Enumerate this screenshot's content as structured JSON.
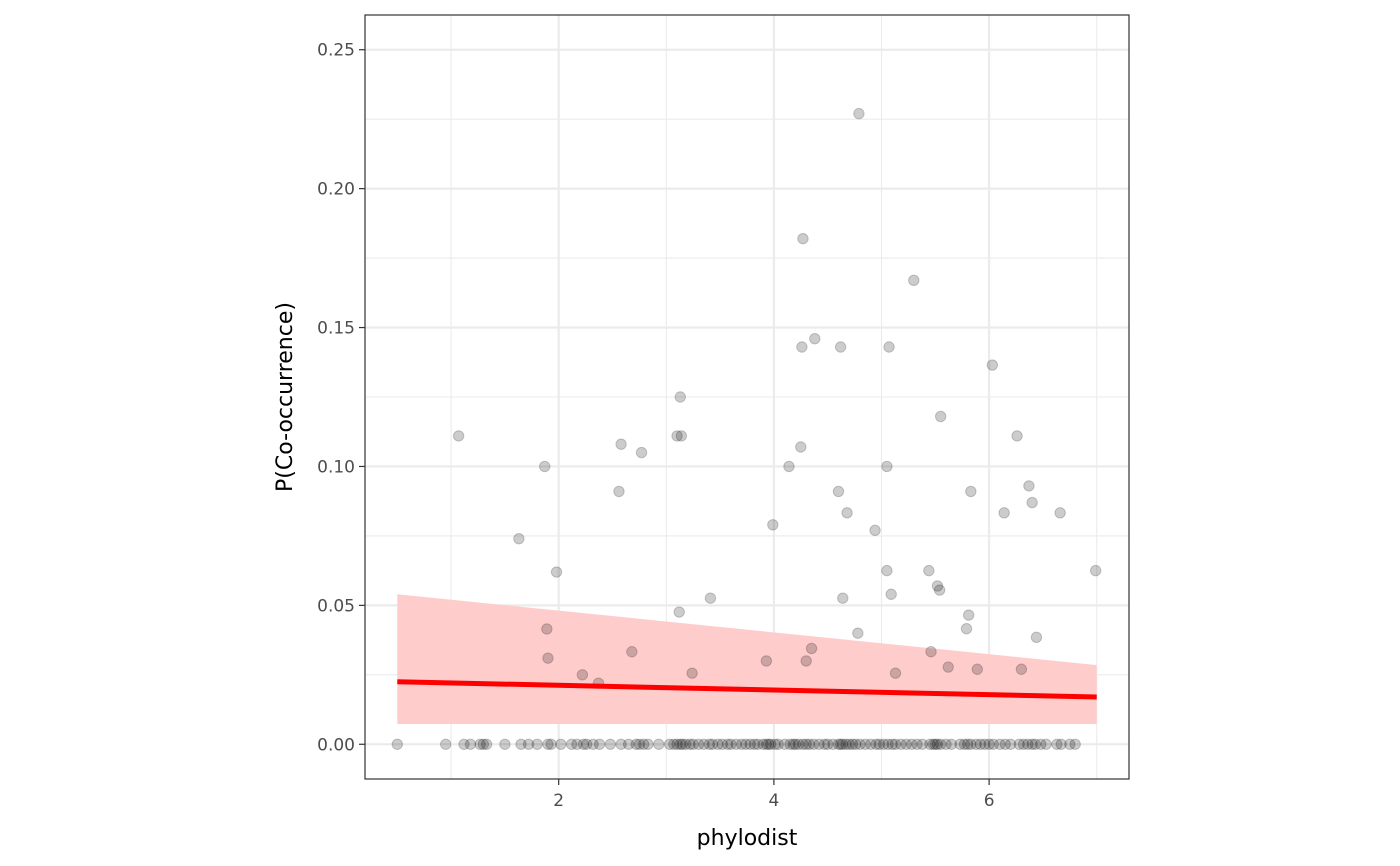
{
  "chart_data": {
    "type": "scatter",
    "xlabel": "phylodist",
    "ylabel": "P(Co-occurrence)",
    "xlim": [
      0.2,
      7.3
    ],
    "ylim": [
      -0.0125,
      0.2625
    ],
    "x_ticks": [
      2,
      4,
      6
    ],
    "x_tick_labels": [
      "2",
      "4",
      "6"
    ],
    "y_ticks": [
      0,
      0.05,
      0.1,
      0.15,
      0.2,
      0.25
    ],
    "y_tick_labels": [
      "0.00",
      "0.05",
      "0.10",
      "0.15",
      "0.20",
      "0.25"
    ],
    "grid": true,
    "legend": "none",
    "colors": {
      "points": "#000000",
      "fit_line": "#ff0000",
      "ribbon": "#ffcccc",
      "grid": "#ebebeb",
      "panel_border": "#333333"
    },
    "fit": {
      "x": [
        0.5,
        7.0
      ],
      "y": [
        0.0225,
        0.017
      ],
      "lower": [
        0.0073,
        0.0073
      ],
      "upper": [
        0.054,
        0.0285
      ]
    },
    "points": [
      [
        1.07,
        0.111
      ],
      [
        1.63,
        0.074
      ],
      [
        1.87,
        0.1
      ],
      [
        1.89,
        0.0415
      ],
      [
        1.9,
        0.031
      ],
      [
        1.98,
        0.062
      ],
      [
        2.22,
        0.025
      ],
      [
        2.37,
        0.022
      ],
      [
        2.56,
        0.091
      ],
      [
        2.58,
        0.108
      ],
      [
        2.68,
        0.0333
      ],
      [
        2.77,
        0.105
      ],
      [
        3.1,
        0.111
      ],
      [
        3.12,
        0.0476
      ],
      [
        3.13,
        0.125
      ],
      [
        3.14,
        0.111
      ],
      [
        3.24,
        0.0256
      ],
      [
        3.41,
        0.0526
      ],
      [
        3.93,
        0.03
      ],
      [
        3.99,
        0.079
      ],
      [
        4.14,
        0.1
      ],
      [
        4.25,
        0.107
      ],
      [
        4.26,
        0.143
      ],
      [
        4.27,
        0.182
      ],
      [
        4.3,
        0.03
      ],
      [
        4.35,
        0.0345
      ],
      [
        4.38,
        0.146
      ],
      [
        4.6,
        0.091
      ],
      [
        4.62,
        0.143
      ],
      [
        4.64,
        0.0526
      ],
      [
        4.68,
        0.0833
      ],
      [
        4.78,
        0.04
      ],
      [
        4.79,
        0.227
      ],
      [
        4.94,
        0.077
      ],
      [
        5.05,
        0.1
      ],
      [
        5.05,
        0.0625
      ],
      [
        5.07,
        0.143
      ],
      [
        5.09,
        0.054
      ],
      [
        5.13,
        0.0256
      ],
      [
        5.3,
        0.167
      ],
      [
        5.44,
        0.0625
      ],
      [
        5.46,
        0.0333
      ],
      [
        5.52,
        0.057
      ],
      [
        5.54,
        0.0555
      ],
      [
        5.55,
        0.118
      ],
      [
        5.62,
        0.0278
      ],
      [
        5.79,
        0.0416
      ],
      [
        5.81,
        0.0465
      ],
      [
        5.83,
        0.091
      ],
      [
        5.89,
        0.027
      ],
      [
        6.03,
        0.1365
      ],
      [
        6.14,
        0.0833
      ],
      [
        6.26,
        0.111
      ],
      [
        6.3,
        0.027
      ],
      [
        6.37,
        0.093
      ],
      [
        6.4,
        0.087
      ],
      [
        6.44,
        0.0385
      ],
      [
        6.66,
        0.0833
      ],
      [
        6.99,
        0.0625
      ],
      [
        0.5,
        0
      ],
      [
        0.95,
        0
      ],
      [
        1.12,
        0
      ],
      [
        1.18,
        0
      ],
      [
        1.27,
        0
      ],
      [
        1.3,
        0
      ],
      [
        1.33,
        0
      ],
      [
        1.5,
        0
      ],
      [
        1.65,
        0
      ],
      [
        1.72,
        0
      ],
      [
        1.8,
        0
      ],
      [
        1.9,
        0
      ],
      [
        1.93,
        0
      ],
      [
        2.02,
        0
      ],
      [
        2.12,
        0
      ],
      [
        2.17,
        0
      ],
      [
        2.23,
        0
      ],
      [
        2.26,
        0
      ],
      [
        2.32,
        0
      ],
      [
        2.38,
        0
      ],
      [
        2.48,
        0
      ],
      [
        2.58,
        0
      ],
      [
        2.65,
        0
      ],
      [
        2.72,
        0
      ],
      [
        2.75,
        0
      ],
      [
        2.79,
        0
      ],
      [
        2.83,
        0
      ],
      [
        2.93,
        0
      ],
      [
        3.03,
        0
      ],
      [
        3.07,
        0
      ],
      [
        3.1,
        0
      ],
      [
        3.13,
        0
      ],
      [
        3.15,
        0
      ],
      [
        3.18,
        0
      ],
      [
        3.22,
        0
      ],
      [
        3.25,
        0
      ],
      [
        3.3,
        0
      ],
      [
        3.35,
        0
      ],
      [
        3.4,
        0
      ],
      [
        3.43,
        0
      ],
      [
        3.48,
        0
      ],
      [
        3.52,
        0
      ],
      [
        3.57,
        0
      ],
      [
        3.6,
        0
      ],
      [
        3.65,
        0
      ],
      [
        3.7,
        0
      ],
      [
        3.74,
        0
      ],
      [
        3.78,
        0
      ],
      [
        3.82,
        0
      ],
      [
        3.85,
        0
      ],
      [
        3.9,
        0
      ],
      [
        3.93,
        0
      ],
      [
        3.95,
        0
      ],
      [
        3.97,
        0
      ],
      [
        4.01,
        0
      ],
      [
        4.04,
        0
      ],
      [
        4.1,
        0
      ],
      [
        4.15,
        0
      ],
      [
        4.18,
        0
      ],
      [
        4.2,
        0
      ],
      [
        4.23,
        0
      ],
      [
        4.27,
        0
      ],
      [
        4.3,
        0
      ],
      [
        4.33,
        0
      ],
      [
        4.37,
        0
      ],
      [
        4.42,
        0
      ],
      [
        4.47,
        0
      ],
      [
        4.5,
        0
      ],
      [
        4.55,
        0
      ],
      [
        4.6,
        0
      ],
      [
        4.62,
        0
      ],
      [
        4.64,
        0
      ],
      [
        4.67,
        0
      ],
      [
        4.7,
        0
      ],
      [
        4.73,
        0
      ],
      [
        4.76,
        0
      ],
      [
        4.8,
        0
      ],
      [
        4.85,
        0
      ],
      [
        4.9,
        0
      ],
      [
        4.95,
        0
      ],
      [
        4.98,
        0
      ],
      [
        5.02,
        0
      ],
      [
        5.06,
        0
      ],
      [
        5.1,
        0
      ],
      [
        5.13,
        0
      ],
      [
        5.18,
        0
      ],
      [
        5.23,
        0
      ],
      [
        5.28,
        0
      ],
      [
        5.33,
        0
      ],
      [
        5.38,
        0
      ],
      [
        5.45,
        0
      ],
      [
        5.48,
        0
      ],
      [
        5.5,
        0
      ],
      [
        5.52,
        0
      ],
      [
        5.55,
        0
      ],
      [
        5.6,
        0
      ],
      [
        5.65,
        0
      ],
      [
        5.73,
        0
      ],
      [
        5.77,
        0
      ],
      [
        5.8,
        0
      ],
      [
        5.83,
        0
      ],
      [
        5.88,
        0
      ],
      [
        5.92,
        0
      ],
      [
        5.96,
        0
      ],
      [
        6.0,
        0
      ],
      [
        6.04,
        0
      ],
      [
        6.1,
        0
      ],
      [
        6.15,
        0
      ],
      [
        6.2,
        0
      ],
      [
        6.28,
        0
      ],
      [
        6.32,
        0
      ],
      [
        6.36,
        0
      ],
      [
        6.4,
        0
      ],
      [
        6.43,
        0
      ],
      [
        6.48,
        0
      ],
      [
        6.53,
        0
      ],
      [
        6.63,
        0
      ],
      [
        6.67,
        0
      ],
      [
        6.75,
        0
      ],
      [
        6.8,
        0
      ]
    ]
  }
}
